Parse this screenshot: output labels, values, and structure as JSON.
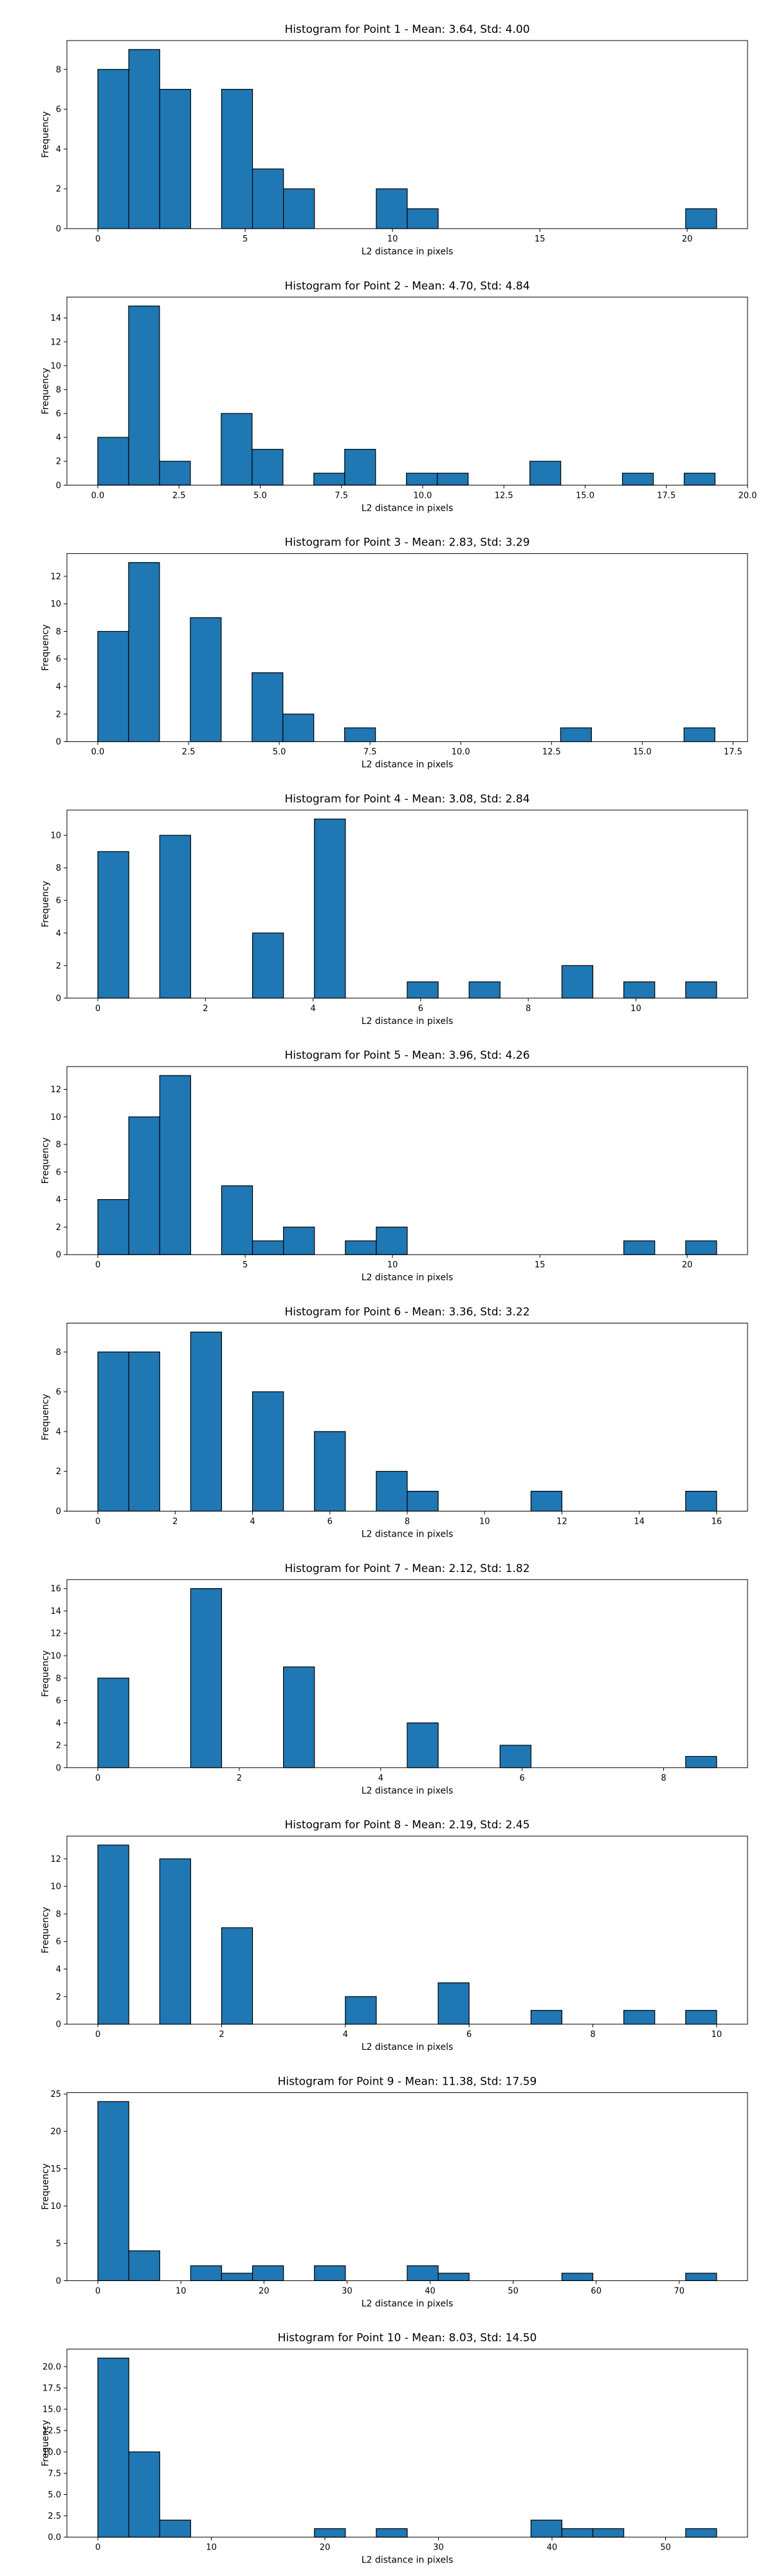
{
  "chart_data": [
    {
      "type": "bar",
      "title": "Histogram for Point 1 - Mean: 3.64, Std: 4.00",
      "xlabel": "L2 distance in pixels",
      "ylabel": "Frequency",
      "xlim": [
        -1.05,
        22.05
      ],
      "ylim": [
        0,
        9.45
      ],
      "x_ticks": [
        0,
        5,
        10,
        15,
        20
      ],
      "x_tick_labels": [
        "0",
        "5",
        "10",
        "15",
        "20"
      ],
      "y_ticks": [
        0,
        2,
        4,
        6,
        8
      ],
      "y_tick_labels": [
        "0",
        "2",
        "4",
        "6",
        "8"
      ],
      "bin_start": 0,
      "bin_width": 1.05,
      "counts": [
        8,
        9,
        7,
        0,
        7,
        3,
        2,
        0,
        0,
        2,
        1,
        0,
        0,
        0,
        0,
        0,
        0,
        0,
        0,
        1
      ],
      "color": "#1f77b4",
      "edgecolor": "#000000"
    },
    {
      "type": "bar",
      "title": "Histogram for Point 2 - Mean: 4.70, Std: 4.84",
      "xlabel": "L2 distance in pixels",
      "ylabel": "Frequency",
      "xlim": [
        -0.95,
        20.0
      ],
      "ylim": [
        0,
        15.75
      ],
      "x_ticks": [
        0,
        2.5,
        5,
        7.5,
        10,
        12.5,
        15,
        17.5,
        20
      ],
      "x_tick_labels": [
        "0.0",
        "2.5",
        "5.0",
        "7.5",
        "10.0",
        "12.5",
        "15.0",
        "17.5",
        "20.0"
      ],
      "y_ticks": [
        0,
        2,
        4,
        6,
        8,
        10,
        12,
        14
      ],
      "y_tick_labels": [
        "0",
        "2",
        "4",
        "6",
        "8",
        "10",
        "12",
        "14"
      ],
      "bin_start": 0,
      "bin_width": 0.95,
      "counts": [
        4,
        15,
        2,
        0,
        6,
        3,
        0,
        1,
        3,
        0,
        1,
        1,
        0,
        0,
        2,
        0,
        0,
        1,
        0,
        1
      ],
      "color": "#1f77b4",
      "edgecolor": "#000000"
    },
    {
      "type": "bar",
      "title": "Histogram for Point 3 - Mean: 2.83, Std: 3.29",
      "xlabel": "L2 distance in pixels",
      "ylabel": "Frequency",
      "xlim": [
        -0.85,
        17.9
      ],
      "ylim": [
        0,
        13.65
      ],
      "x_ticks": [
        0,
        2.5,
        5,
        7.5,
        10,
        12.5,
        15,
        17.5
      ],
      "x_tick_labels": [
        "0.0",
        "2.5",
        "5.0",
        "7.5",
        "10.0",
        "12.5",
        "15.0",
        "17.5"
      ],
      "y_ticks": [
        0,
        2,
        4,
        6,
        8,
        10,
        12
      ],
      "y_tick_labels": [
        "0",
        "2",
        "4",
        "6",
        "8",
        "10",
        "12"
      ],
      "bin_start": 0,
      "bin_width": 0.85,
      "counts": [
        8,
        13,
        0,
        9,
        0,
        5,
        2,
        0,
        1,
        0,
        0,
        0,
        0,
        0,
        0,
        1,
        0,
        0,
        0,
        1
      ],
      "color": "#1f77b4",
      "edgecolor": "#000000"
    },
    {
      "type": "bar",
      "title": "Histogram for Point 4 - Mean: 3.08, Std: 2.84",
      "xlabel": "L2 distance in pixels",
      "ylabel": "Frequency",
      "xlim": [
        -0.575,
        12.075
      ],
      "ylim": [
        0,
        11.55
      ],
      "x_ticks": [
        0,
        2,
        4,
        6,
        8,
        10
      ],
      "x_tick_labels": [
        "0",
        "2",
        "4",
        "6",
        "8",
        "10"
      ],
      "y_ticks": [
        0,
        2,
        4,
        6,
        8,
        10
      ],
      "y_tick_labels": [
        "0",
        "2",
        "4",
        "6",
        "8",
        "10"
      ],
      "bin_start": 0,
      "bin_width": 0.575,
      "counts": [
        9,
        0,
        10,
        0,
        0,
        4,
        0,
        11,
        0,
        0,
        1,
        0,
        1,
        0,
        0,
        2,
        0,
        1,
        0,
        1
      ],
      "color": "#1f77b4",
      "edgecolor": "#000000"
    },
    {
      "type": "bar",
      "title": "Histogram for Point 5 - Mean: 3.96, Std: 4.26",
      "xlabel": "L2 distance in pixels",
      "ylabel": "Frequency",
      "xlim": [
        -1.05,
        22.05
      ],
      "ylim": [
        0,
        13.65
      ],
      "x_ticks": [
        0,
        5,
        10,
        15,
        20
      ],
      "x_tick_labels": [
        "0",
        "5",
        "10",
        "15",
        "20"
      ],
      "y_ticks": [
        0,
        2,
        4,
        6,
        8,
        10,
        12
      ],
      "y_tick_labels": [
        "0",
        "2",
        "4",
        "6",
        "8",
        "10",
        "12"
      ],
      "bin_start": 0,
      "bin_width": 1.05,
      "counts": [
        4,
        10,
        13,
        0,
        5,
        1,
        2,
        0,
        1,
        2,
        0,
        0,
        0,
        0,
        0,
        0,
        0,
        1,
        0,
        1
      ],
      "color": "#1f77b4",
      "edgecolor": "#000000"
    },
    {
      "type": "bar",
      "title": "Histogram for Point 6 - Mean: 3.36, Std: 3.22",
      "xlabel": "L2 distance in pixels",
      "ylabel": "Frequency",
      "xlim": [
        -0.8,
        16.8
      ],
      "ylim": [
        0,
        9.45
      ],
      "x_ticks": [
        0,
        2,
        4,
        6,
        8,
        10,
        12,
        14,
        16
      ],
      "x_tick_labels": [
        "0",
        "2",
        "4",
        "6",
        "8",
        "10",
        "12",
        "14",
        "16"
      ],
      "y_ticks": [
        0,
        2,
        4,
        6,
        8
      ],
      "y_tick_labels": [
        "0",
        "2",
        "4",
        "6",
        "8"
      ],
      "bin_start": 0,
      "bin_width": 0.8,
      "counts": [
        8,
        8,
        0,
        9,
        0,
        6,
        0,
        4,
        0,
        2,
        1,
        0,
        0,
        0,
        1,
        0,
        0,
        0,
        0,
        1
      ],
      "color": "#1f77b4",
      "edgecolor": "#000000"
    },
    {
      "type": "bar",
      "title": "Histogram for Point 7 - Mean: 2.12, Std: 1.82",
      "xlabel": "L2 distance in pixels",
      "ylabel": "Frequency",
      "xlim": [
        -0.4375,
        9.1875
      ],
      "ylim": [
        0,
        16.8
      ],
      "x_ticks": [
        0,
        2,
        4,
        6,
        8
      ],
      "x_tick_labels": [
        "0",
        "2",
        "4",
        "6",
        "8"
      ],
      "y_ticks": [
        0,
        2,
        4,
        6,
        8,
        10,
        12,
        14,
        16
      ],
      "y_tick_labels": [
        "0",
        "2",
        "4",
        "6",
        "8",
        "10",
        "12",
        "14",
        "16"
      ],
      "bin_start": 0,
      "bin_width": 0.4375,
      "counts": [
        8,
        0,
        0,
        16,
        0,
        0,
        9,
        0,
        0,
        0,
        4,
        0,
        0,
        2,
        0,
        0,
        0,
        0,
        0,
        1
      ],
      "color": "#1f77b4",
      "edgecolor": "#000000"
    },
    {
      "type": "bar",
      "title": "Histogram for Point 8 - Mean: 2.19, Std: 2.45",
      "xlabel": "L2 distance in pixels",
      "ylabel": "Frequency",
      "xlim": [
        -0.5,
        10.5
      ],
      "ylim": [
        0,
        13.65
      ],
      "x_ticks": [
        0,
        2,
        4,
        6,
        8,
        10
      ],
      "x_tick_labels": [
        "0",
        "2",
        "4",
        "6",
        "8",
        "10"
      ],
      "y_ticks": [
        0,
        2,
        4,
        6,
        8,
        10,
        12
      ],
      "y_tick_labels": [
        "0",
        "2",
        "4",
        "6",
        "8",
        "10",
        "12"
      ],
      "bin_start": 0,
      "bin_width": 0.5,
      "counts": [
        13,
        0,
        12,
        0,
        7,
        0,
        0,
        0,
        2,
        0,
        0,
        3,
        0,
        0,
        1,
        0,
        0,
        1,
        0,
        1
      ],
      "color": "#1f77b4",
      "edgecolor": "#000000"
    },
    {
      "type": "bar",
      "title": "Histogram for Point 9 - Mean: 11.38, Std: 17.59",
      "xlabel": "L2 distance in pixels",
      "ylabel": "Frequency",
      "xlim": [
        -3.725,
        78.225
      ],
      "ylim": [
        0,
        25.2
      ],
      "x_ticks": [
        0,
        10,
        20,
        30,
        40,
        50,
        60,
        70
      ],
      "x_tick_labels": [
        "0",
        "10",
        "20",
        "30",
        "40",
        "50",
        "60",
        "70"
      ],
      "y_ticks": [
        0,
        5,
        10,
        15,
        20,
        25
      ],
      "y_tick_labels": [
        "0",
        "5",
        "10",
        "15",
        "20",
        "25"
      ],
      "bin_start": 0,
      "bin_width": 3.725,
      "counts": [
        24,
        4,
        0,
        2,
        1,
        2,
        0,
        2,
        0,
        0,
        2,
        1,
        0,
        0,
        0,
        1,
        0,
        0,
        0,
        1
      ],
      "color": "#1f77b4",
      "edgecolor": "#000000"
    },
    {
      "type": "bar",
      "title": "Histogram for Point 10 - Mean: 8.03, Std: 14.50",
      "xlabel": "L2 distance in pixels",
      "ylabel": "Frequency",
      "xlim": [
        -2.725,
        57.225
      ],
      "ylim": [
        0,
        22.05
      ],
      "x_ticks": [
        0,
        10,
        20,
        30,
        40,
        50
      ],
      "x_tick_labels": [
        "0",
        "10",
        "20",
        "30",
        "40",
        "50"
      ],
      "y_ticks": [
        0,
        2.5,
        5,
        7.5,
        10,
        12.5,
        15,
        17.5,
        20
      ],
      "y_tick_labels": [
        "0.0",
        "2.5",
        "5.0",
        "7.5",
        "10.0",
        "12.5",
        "15.0",
        "17.5",
        "20.0"
      ],
      "bin_start": 0,
      "bin_width": 2.725,
      "counts": [
        21,
        10,
        2,
        0,
        0,
        0,
        0,
        1,
        0,
        1,
        0,
        0,
        0,
        0,
        2,
        1,
        1,
        0,
        0,
        1
      ],
      "color": "#1f77b4",
      "edgecolor": "#000000"
    }
  ]
}
